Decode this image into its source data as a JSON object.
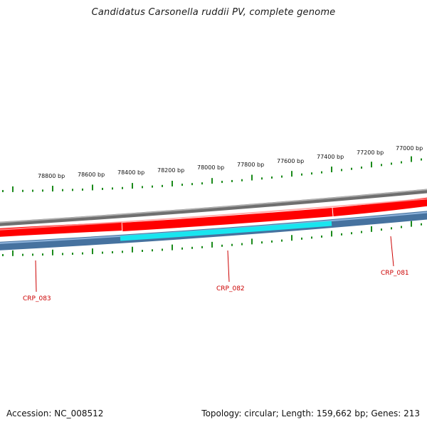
{
  "title": "Candidatus Carsonella ruddii PV, complete genome",
  "footer": {
    "accession": "Accession: NC_008512",
    "summary": "Topology: circular; Length: 159,662 bp; Genes: 213"
  },
  "colors": {
    "backbone": "#808080",
    "forward_gene": "#ff0000",
    "reverse_strand": "#4a7fb5",
    "highlight_gene": "#19e5ef",
    "tick": "#1a8a1a",
    "gene_label": "#cc0000"
  },
  "ruler_labels": [
    "78800 bp",
    "78600 bp",
    "78400 bp",
    "78200 bp",
    "78000 bp",
    "77800 bp",
    "77600 bp",
    "77400 bp",
    "77200 bp",
    "77000 bp"
  ],
  "gene_labels": [
    "CRP_083",
    "CRP_082",
    "CRP_081"
  ]
}
